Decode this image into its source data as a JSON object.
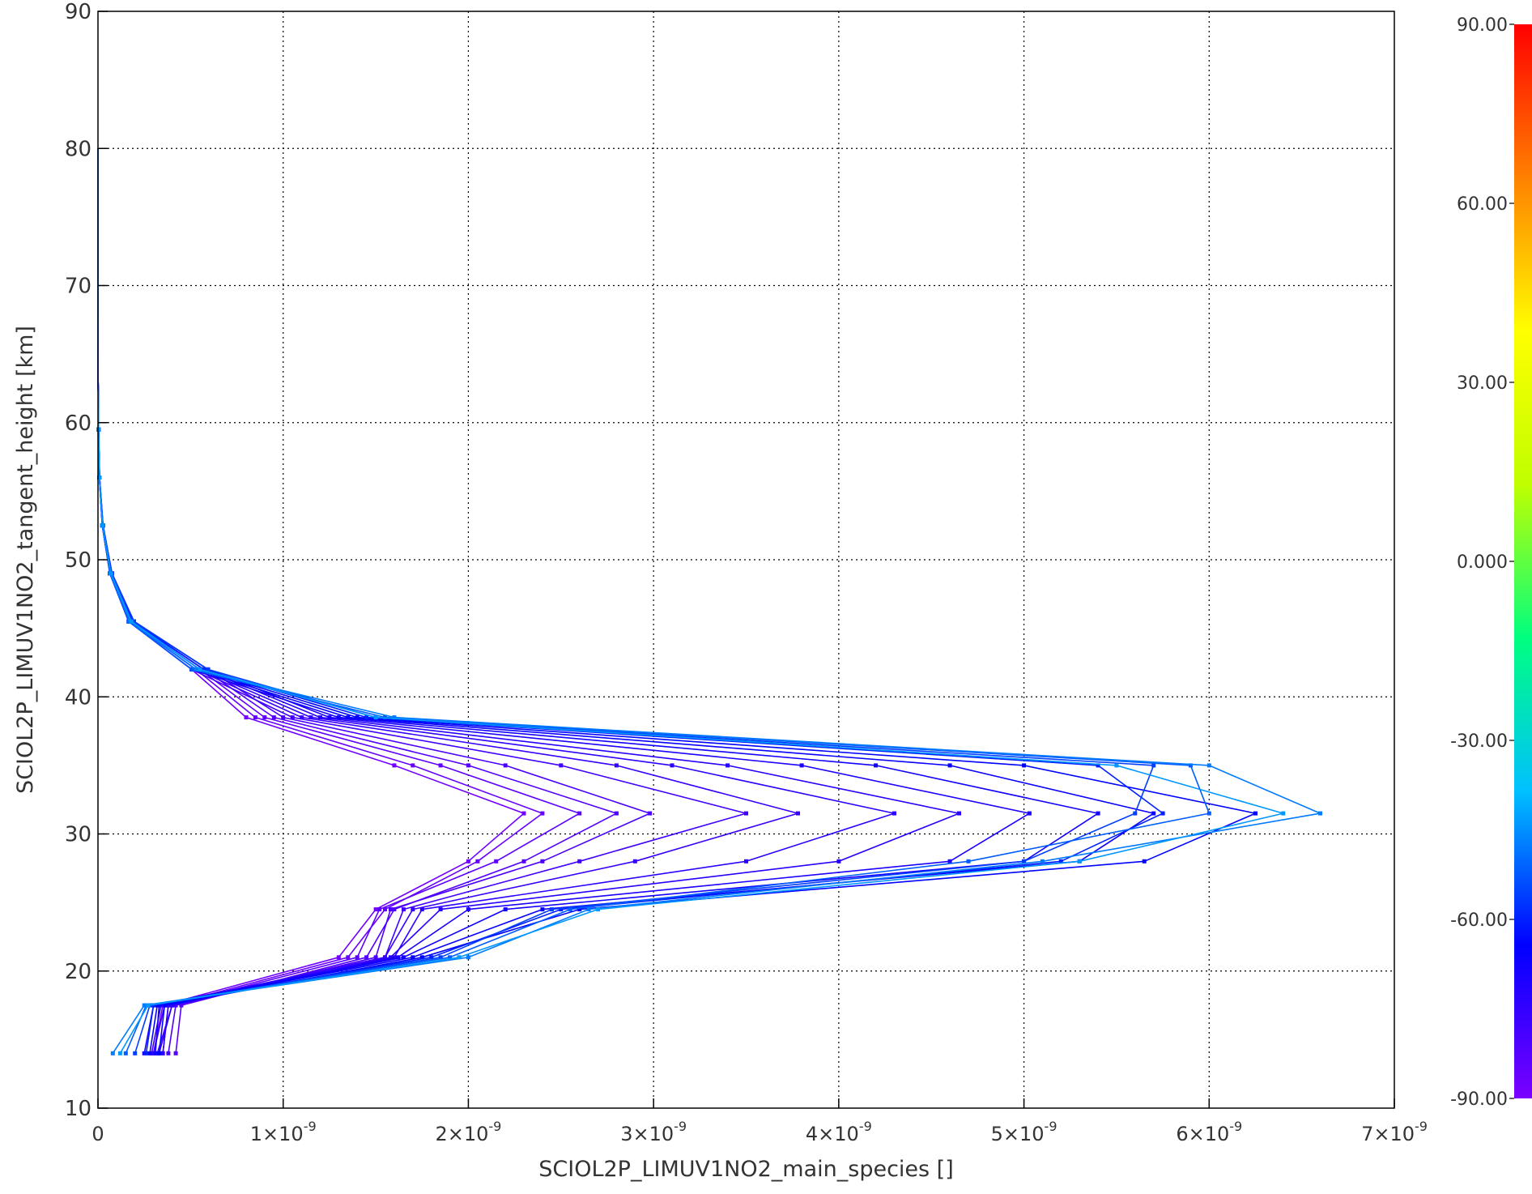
{
  "chart_data": {
    "type": "line",
    "xlabel": "SCIOL2P_LIMUV1NO2_main_species []",
    "ylabel": "SCIOL2P_LIMUV1NO2_tangent_height [km]",
    "xlim": [
      0,
      7e-09
    ],
    "ylim": [
      10,
      90
    ],
    "grid": true,
    "x_tick_labels": [
      {
        "value": 0,
        "mant": "0",
        "exp": ""
      },
      {
        "value": 1e-09,
        "mant": "1×10",
        "exp": "-9"
      },
      {
        "value": 2e-09,
        "mant": "2×10",
        "exp": "-9"
      },
      {
        "value": 3e-09,
        "mant": "3×10",
        "exp": "-9"
      },
      {
        "value": 4e-09,
        "mant": "4×10",
        "exp": "-9"
      },
      {
        "value": 5e-09,
        "mant": "5×10",
        "exp": "-9"
      },
      {
        "value": 6e-09,
        "mant": "6×10",
        "exp": "-9"
      },
      {
        "value": 7e-09,
        "mant": "7×10",
        "exp": "-9"
      }
    ],
    "y_tick_labels": [
      "10",
      "20",
      "30",
      "40",
      "50",
      "60",
      "70",
      "80",
      "90"
    ],
    "colorbar": {
      "range": [
        -90,
        90
      ],
      "tick_labels": [
        {
          "value": 90,
          "label": "90.00"
        },
        {
          "value": 60,
          "label": "60.00"
        },
        {
          "value": 30,
          "label": "30.00"
        },
        {
          "value": 0,
          "label": "0.000"
        },
        {
          "value": -30,
          "label": "-30.00"
        },
        {
          "value": -60,
          "label": "-60.00"
        },
        {
          "value": -90,
          "label": "-90.00"
        }
      ],
      "colors": [
        "#7a00ff",
        "#0000ff",
        "#00c0ff",
        "#00ff80",
        "#c0ff00",
        "#ffff00",
        "#ff8000",
        "#ff0000"
      ]
    },
    "altitudes": [
      14,
      17.5,
      21,
      24.5,
      28,
      31.5,
      35,
      38.5,
      42,
      45.5,
      49,
      52.5,
      56,
      59.5,
      63,
      66.5,
      70,
      80,
      90
    ],
    "upper_profile": [
      5.5e-10,
      1.8e-10,
      7e-11,
      2.5e-11,
      8e-12,
      3e-12,
      1e-12,
      5e-13,
      2e-13,
      0
    ],
    "series": [
      {
        "lat": -88,
        "values": [
          3e-10,
          3.5e-10,
          1.3e-09,
          1.5e-09,
          2e-09,
          2.3e-09,
          1.6e-09,
          8e-10
        ]
      },
      {
        "lat": -86,
        "values": [
          3.5e-10,
          3.8e-10,
          1.35e-09,
          1.55e-09,
          2.05e-09,
          2.4e-09,
          1.7e-09,
          8.5e-10
        ]
      },
      {
        "lat": -84,
        "values": [
          3.2e-10,
          4e-10,
          1.4e-09,
          1.52e-09,
          2.15e-09,
          2.6e-09,
          1.85e-09,
          9e-10
        ]
      },
      {
        "lat": -82,
        "values": [
          4.2e-10,
          4.5e-10,
          1.45e-09,
          1.6e-09,
          2.3e-09,
          2.8e-09,
          2e-09,
          9.5e-10
        ]
      },
      {
        "lat": -80,
        "values": [
          3.8e-10,
          4.2e-10,
          1.5e-09,
          1.58e-09,
          2.4e-09,
          2.98e-09,
          2.2e-09,
          1e-09
        ]
      },
      {
        "lat": -78,
        "values": [
          3e-10,
          3.6e-10,
          1.55e-09,
          1.65e-09,
          2.6e-09,
          3.5e-09,
          2.5e-09,
          1.05e-09
        ]
      },
      {
        "lat": -76,
        "values": [
          2.9e-10,
          3.4e-10,
          1.55e-09,
          1.7e-09,
          2.9e-09,
          3.78e-09,
          2.8e-09,
          1.1e-09
        ]
      },
      {
        "lat": -74,
        "values": [
          3.5e-10,
          3.8e-10,
          1.6e-09,
          1.75e-09,
          3.5e-09,
          4.3e-09,
          3.1e-09,
          1.15e-09
        ]
      },
      {
        "lat": -72,
        "values": [
          3.3e-10,
          4e-10,
          1.58e-09,
          1.85e-09,
          4e-09,
          4.65e-09,
          3.4e-09,
          1.2e-09
        ]
      },
      {
        "lat": -70,
        "values": [
          2.5e-10,
          3e-10,
          1.62e-09,
          2e-09,
          4.6e-09,
          5.03e-09,
          3.8e-09,
          1.25e-09
        ]
      },
      {
        "lat": -68,
        "values": [
          3.1e-10,
          3.3e-10,
          1.65e-09,
          2.2e-09,
          5e-09,
          5.4e-09,
          4.2e-09,
          1.3e-09
        ]
      },
      {
        "lat": -66,
        "values": [
          2.8e-10,
          3.2e-10,
          1.7e-09,
          2.4e-09,
          5.3e-09,
          5.7e-09,
          4.6e-09,
          1.35e-09
        ]
      },
      {
        "lat": -64,
        "values": [
          3.3e-10,
          3.6e-10,
          1.75e-09,
          2.6e-09,
          5.65e-09,
          6.25e-09,
          5e-09,
          1.4e-09
        ]
      },
      {
        "lat": -60,
        "values": [
          2.6e-10,
          3e-10,
          1.8e-09,
          2.5e-09,
          5.2e-09,
          5.75e-09,
          5.4e-09,
          1.45e-09
        ]
      },
      {
        "lat": -56,
        "values": [
          2e-10,
          2.8e-10,
          1.85e-09,
          2.45e-09,
          5e-09,
          5.6e-09,
          5.7e-09,
          1.5e-09
        ]
      },
      {
        "lat": -52,
        "values": [
          1.5e-10,
          2.6e-10,
          1.9e-09,
          2.55e-09,
          4.7e-09,
          6e-09,
          5.9e-09,
          1.55e-09
        ]
      },
      {
        "lat": -48,
        "values": [
          8e-11,
          2.5e-10,
          2e-09,
          2.65e-09,
          5.1e-09,
          6.6e-09,
          6e-09,
          1.6e-09
        ]
      },
      {
        "lat": -44,
        "values": [
          1.2e-10,
          2.7e-10,
          1.95e-09,
          2.7e-09,
          5.3e-09,
          6.4e-09,
          5.5e-09,
          1.5e-09
        ]
      }
    ]
  }
}
